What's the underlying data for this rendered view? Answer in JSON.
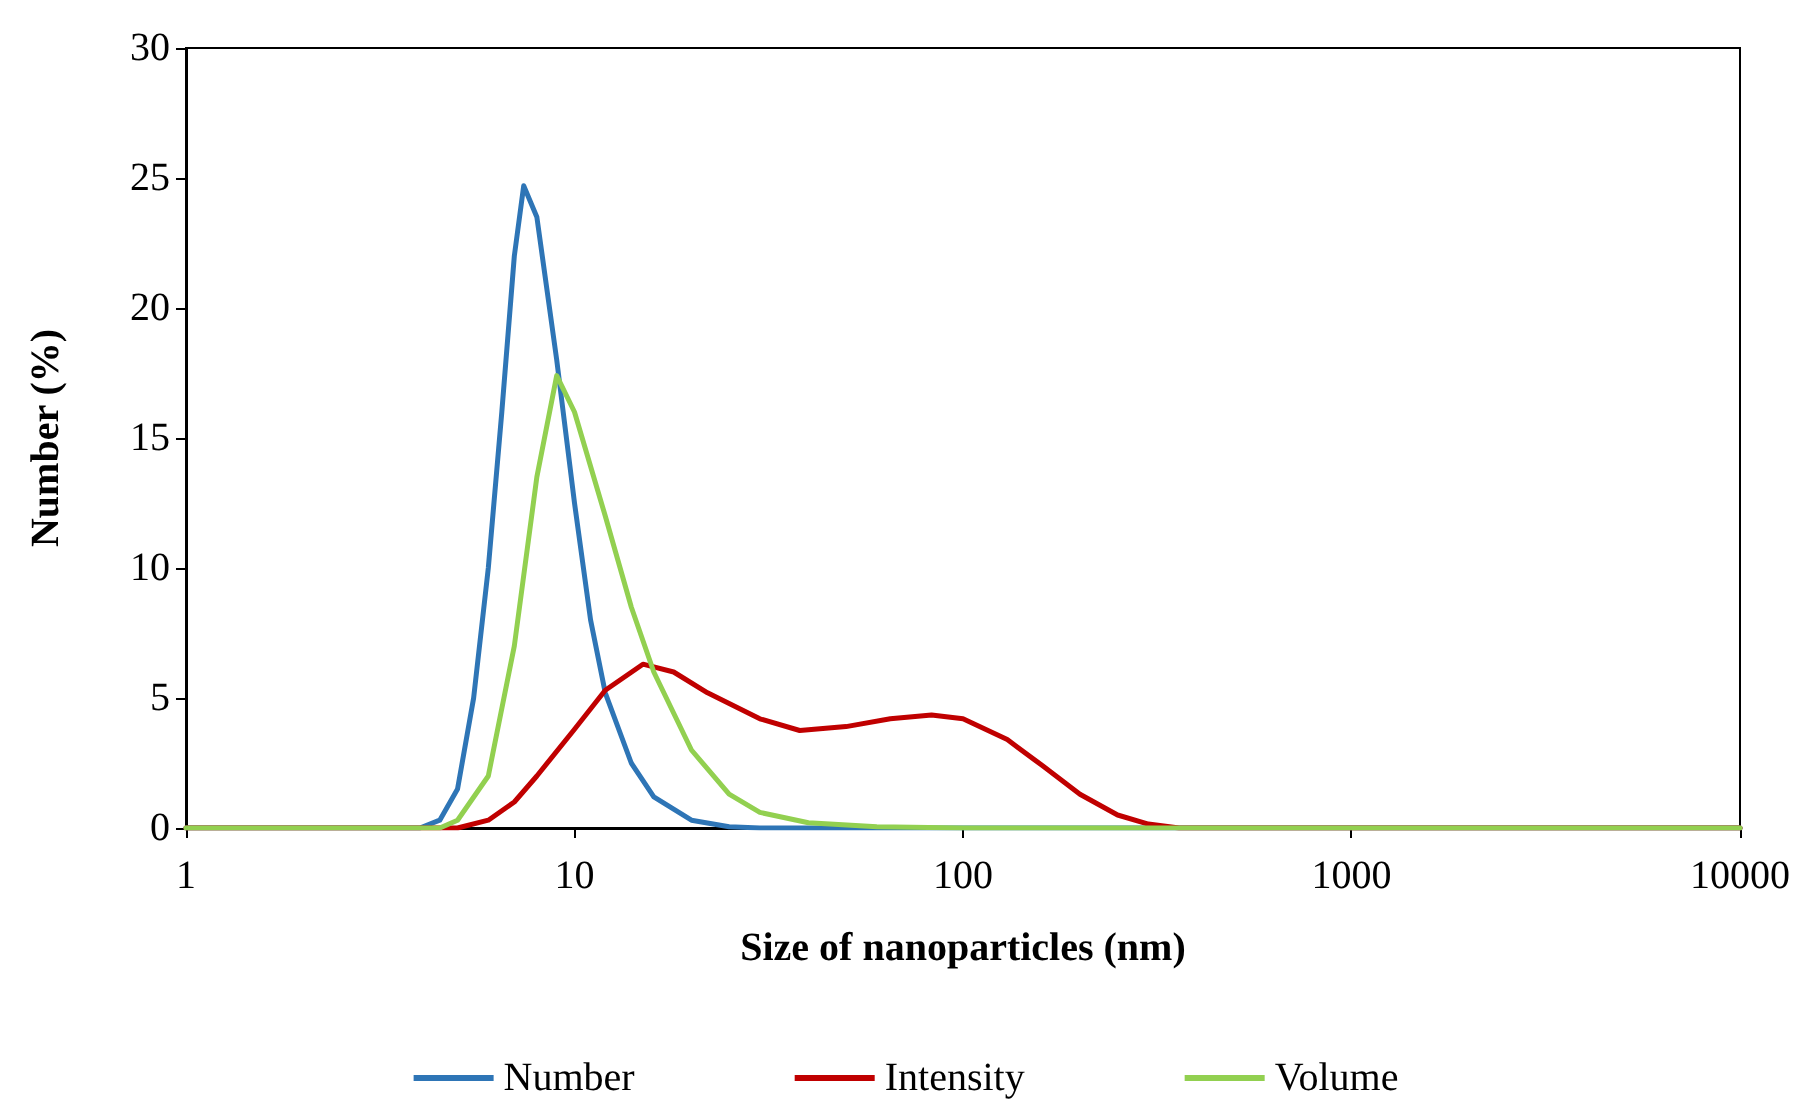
{
  "chart_data": {
    "type": "line",
    "xlabel": "Size of nanoparticles (nm)",
    "ylabel": "Number (%)",
    "log": "x",
    "xlim": [
      1,
      10000
    ],
    "xticks": [
      1,
      10,
      100,
      1000,
      10000
    ],
    "ylim": [
      0,
      30
    ],
    "yticks": [
      0,
      5,
      10,
      15,
      20,
      25,
      30
    ],
    "grid": false,
    "legend": "bottom",
    "marker": "none",
    "line_style": "solid",
    "series": [
      {
        "name": "Number",
        "color": "#2e75b6",
        "x": [
          1,
          4,
          4.5,
          5,
          5.5,
          6,
          6.5,
          7,
          7.4,
          8,
          9,
          10,
          11,
          12,
          14,
          16,
          20,
          25,
          30,
          10000
        ],
        "values": [
          0,
          0,
          0.3,
          1.5,
          5,
          10,
          16,
          22,
          24.7,
          23.5,
          18,
          12.5,
          8,
          5.2,
          2.5,
          1.2,
          0.3,
          0.05,
          0,
          0
        ]
      },
      {
        "name": "Intensity",
        "color": "#c00000",
        "x": [
          1,
          5,
          6,
          7,
          8,
          10,
          12,
          15,
          18,
          22,
          30,
          38,
          50,
          65,
          83,
          100,
          130,
          160,
          200,
          250,
          300,
          360,
          10000
        ],
        "values": [
          0,
          0,
          0.3,
          1,
          2,
          3.8,
          5.3,
          6.3,
          6,
          5.2,
          4.2,
          3.75,
          3.9,
          4.2,
          4.35,
          4.2,
          3.4,
          2.4,
          1.3,
          0.5,
          0.15,
          0,
          0
        ]
      },
      {
        "name": "Volume",
        "color": "#92d050",
        "x": [
          1,
          4.5,
          5,
          6,
          7,
          8,
          9,
          10,
          12,
          14,
          16,
          20,
          25,
          30,
          40,
          60,
          100,
          10000
        ],
        "values": [
          0,
          0,
          0.3,
          2,
          7,
          13.5,
          17.4,
          16,
          12,
          8.5,
          6,
          3,
          1.3,
          0.6,
          0.2,
          0.05,
          0,
          0
        ]
      }
    ]
  }
}
